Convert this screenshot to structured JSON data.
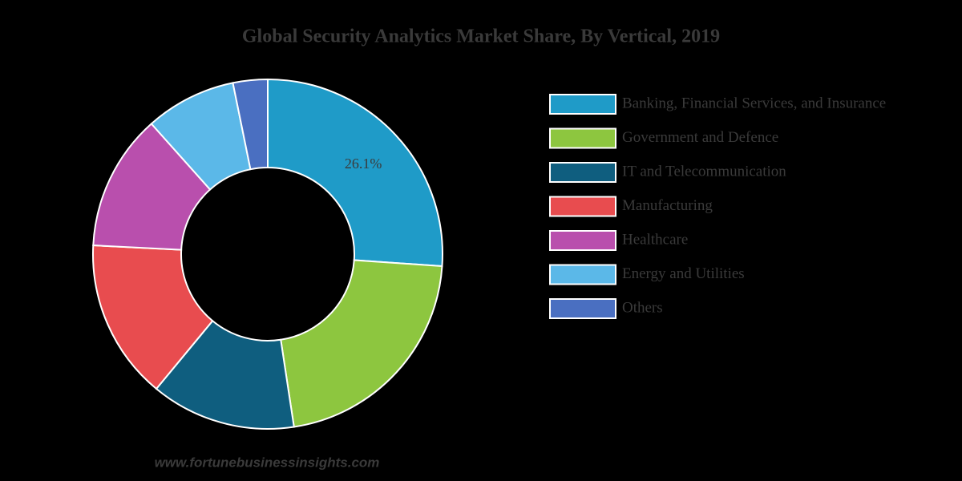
{
  "chart_data": {
    "type": "pie",
    "title": "Global Security Analytics Market Share, By Vertical, 2019",
    "categories": [
      "Banking, Financial Services, and Insurance",
      "Government and Defence",
      "IT and Telecommunication",
      "Manufacturing",
      "Healthcare",
      "Energy and Utilities",
      "Others"
    ],
    "values": [
      26.1,
      21.5,
      13.4,
      14.8,
      12.6,
      8.4,
      3.2
    ],
    "value_labels": [
      "26.1%",
      null,
      null,
      null,
      null,
      null,
      null
    ],
    "colors": [
      "#1f9bc8",
      "#8dc63f",
      "#0f5e7f",
      "#e84c4f",
      "#b94fad",
      "#5bb8e8",
      "#4a6fc1"
    ],
    "legend": "right",
    "source": "www.fortunebusinessinsights.com"
  }
}
